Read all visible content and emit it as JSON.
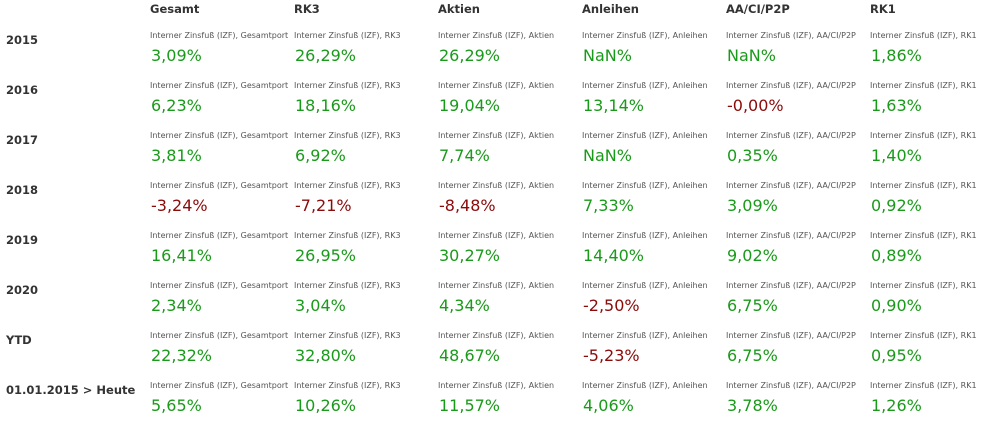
{
  "columns": [
    {
      "key": "gesamt",
      "label": "Gesamt",
      "caption": "Interner Zinsfuß (IZF), Gesamtport"
    },
    {
      "key": "rk3",
      "label": "RK3",
      "caption": "Interner Zinsfuß (IZF), RK3"
    },
    {
      "key": "aktien",
      "label": "Aktien",
      "caption": "Interner Zinsfuß (IZF), Aktien"
    },
    {
      "key": "anleihen",
      "label": "Anleihen",
      "caption": "Interner Zinsfuß (IZF), Anleihen"
    },
    {
      "key": "aacip2p",
      "label": "AA/CI/P2P",
      "caption": "Interner Zinsfuß (IZF), AA/CI/P2P"
    },
    {
      "key": "rk1",
      "label": "RK1",
      "caption": "Interner Zinsfuß (IZF), RK1"
    }
  ],
  "rows": [
    {
      "label": "2015",
      "values": [
        "3,09%",
        "26,29%",
        "26,29%",
        "NaN%",
        "NaN%",
        "1,86%"
      ]
    },
    {
      "label": "2016",
      "values": [
        "6,23%",
        "18,16%",
        "19,04%",
        "13,14%",
        "-0,00%",
        "1,63%"
      ]
    },
    {
      "label": "2017",
      "values": [
        "3,81%",
        "6,92%",
        "7,74%",
        "NaN%",
        "0,35%",
        "1,40%"
      ]
    },
    {
      "label": "2018",
      "values": [
        "-3,24%",
        "-7,21%",
        "-8,48%",
        "7,33%",
        "3,09%",
        "0,92%"
      ]
    },
    {
      "label": "2019",
      "values": [
        "16,41%",
        "26,95%",
        "30,27%",
        "14,40%",
        "9,02%",
        "0,89%"
      ]
    },
    {
      "label": "2020",
      "values": [
        "2,34%",
        "3,04%",
        "4,34%",
        "-2,50%",
        "6,75%",
        "0,90%"
      ]
    },
    {
      "label": "YTD",
      "values": [
        "22,32%",
        "32,80%",
        "48,67%",
        "-5,23%",
        "6,75%",
        "0,95%"
      ]
    },
    {
      "label": "01.01.2015 > Heute",
      "values": [
        "5,65%",
        "10,26%",
        "11,57%",
        "4,06%",
        "3,78%",
        "1,26%"
      ]
    }
  ],
  "colors": {
    "positive": "#1a9a1a",
    "negative": "#8b0a0a"
  }
}
